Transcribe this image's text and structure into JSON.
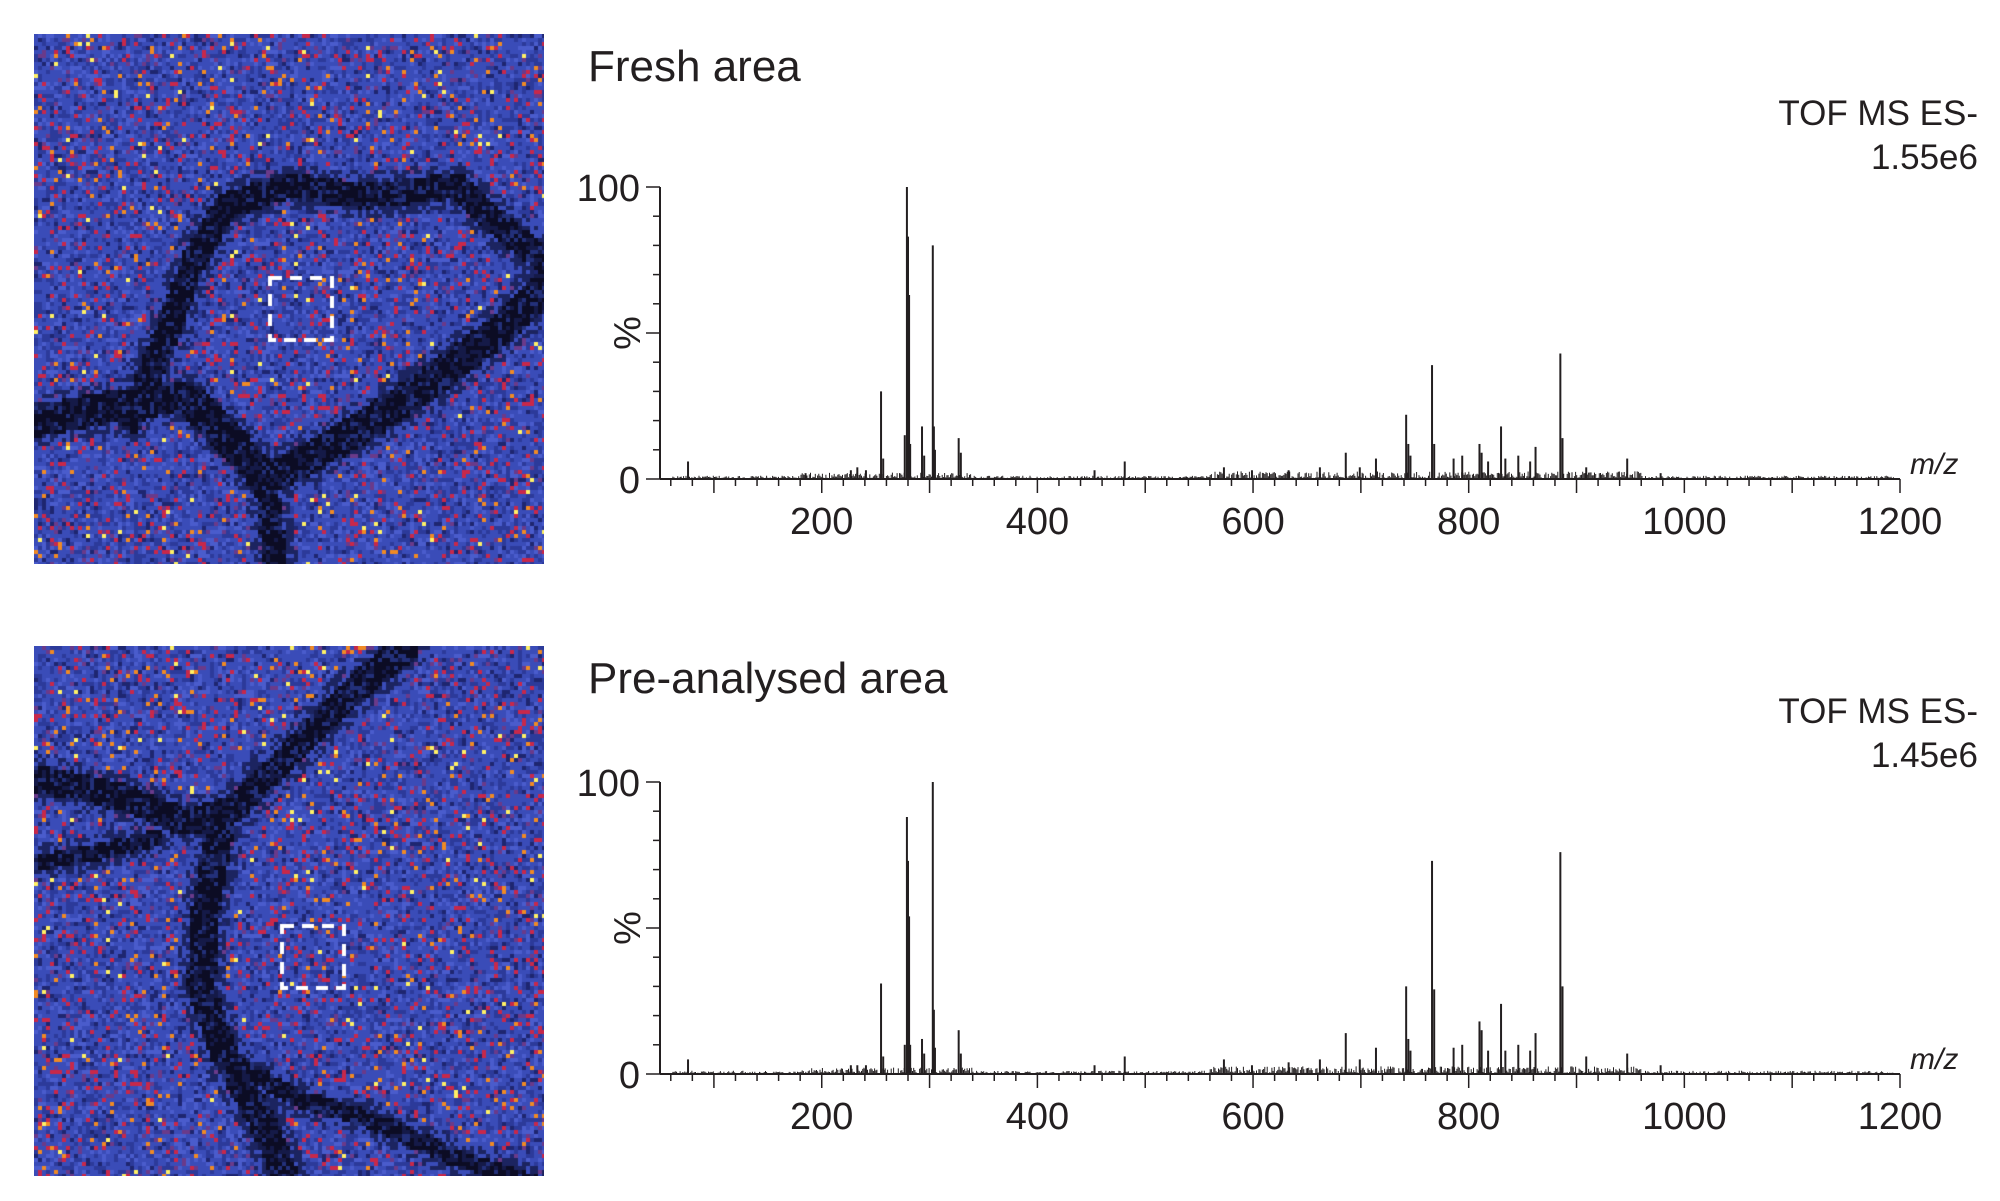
{
  "colors": {
    "background": "#ffffff",
    "spectrum_line": "#231f20",
    "tissue_base": "#3a4cb8",
    "tissue_dark": "#0c0c24",
    "hot_red": "#c8284a",
    "hot_orange": "#f08a24",
    "hot_yellow": "#fff066",
    "roi_box": "#ffffff"
  },
  "panels": [
    {
      "title": "Fresh area",
      "instrument": "TOF MS ES-",
      "intensity": "1.55e6",
      "image": {
        "description_icon": "tissue-ion-image",
        "roi": "dashed-square"
      }
    },
    {
      "title": "Pre-analysed area",
      "instrument": "TOF MS ES-",
      "intensity": "1.45e6",
      "image": {
        "description_icon": "tissue-ion-image",
        "roi": "dashed-square"
      }
    }
  ],
  "chart_data": [
    {
      "type": "bar",
      "title": "Fresh area",
      "xlabel": "m/z",
      "ylabel": "%",
      "xlim": [
        50,
        1200
      ],
      "ylim": [
        0,
        100
      ],
      "x_ticks": [
        200,
        400,
        600,
        800,
        1000,
        1200
      ],
      "y_ticks": [
        0,
        100
      ],
      "y_mid_label": "%",
      "peaks": [
        [
          76,
          6
        ],
        [
          185,
          2
        ],
        [
          227,
          3
        ],
        [
          233,
          4
        ],
        [
          241,
          3
        ],
        [
          255,
          30
        ],
        [
          257,
          7
        ],
        [
          277,
          15
        ],
        [
          279,
          100
        ],
        [
          280,
          83
        ],
        [
          281,
          63
        ],
        [
          282,
          12
        ],
        [
          293,
          18
        ],
        [
          295,
          8
        ],
        [
          303,
          80
        ],
        [
          304,
          18
        ],
        [
          305,
          10
        ],
        [
          327,
          14
        ],
        [
          329,
          9
        ],
        [
          453,
          3
        ],
        [
          481,
          6
        ],
        [
          573,
          4
        ],
        [
          599,
          3
        ],
        [
          633,
          3
        ],
        [
          662,
          4
        ],
        [
          686,
          9
        ],
        [
          699,
          4
        ],
        [
          714,
          7
        ],
        [
          742,
          22
        ],
        [
          744,
          12
        ],
        [
          746,
          8
        ],
        [
          766,
          39
        ],
        [
          768,
          12
        ],
        [
          786,
          7
        ],
        [
          794,
          8
        ],
        [
          810,
          12
        ],
        [
          812,
          9
        ],
        [
          818,
          6
        ],
        [
          830,
          18
        ],
        [
          834,
          7
        ],
        [
          846,
          8
        ],
        [
          857,
          6
        ],
        [
          862,
          11
        ],
        [
          885,
          43
        ],
        [
          887,
          14
        ],
        [
          909,
          4
        ],
        [
          947,
          7
        ],
        [
          978,
          2
        ]
      ]
    },
    {
      "type": "bar",
      "title": "Pre-analysed area",
      "xlabel": "m/z",
      "ylabel": "%",
      "xlim": [
        50,
        1200
      ],
      "ylim": [
        0,
        100
      ],
      "x_ticks": [
        200,
        400,
        600,
        800,
        1000,
        1200
      ],
      "y_ticks": [
        0,
        100
      ],
      "y_mid_label": "%",
      "peaks": [
        [
          76,
          5
        ],
        [
          227,
          3
        ],
        [
          233,
          3
        ],
        [
          241,
          3
        ],
        [
          255,
          31
        ],
        [
          257,
          6
        ],
        [
          277,
          10
        ],
        [
          279,
          88
        ],
        [
          280,
          73
        ],
        [
          281,
          54
        ],
        [
          282,
          10
        ],
        [
          293,
          12
        ],
        [
          295,
          7
        ],
        [
          303,
          100
        ],
        [
          304,
          22
        ],
        [
          305,
          9
        ],
        [
          327,
          15
        ],
        [
          329,
          7
        ],
        [
          453,
          3
        ],
        [
          481,
          6
        ],
        [
          573,
          5
        ],
        [
          599,
          3
        ],
        [
          633,
          4
        ],
        [
          662,
          5
        ],
        [
          686,
          14
        ],
        [
          699,
          5
        ],
        [
          714,
          9
        ],
        [
          742,
          30
        ],
        [
          744,
          12
        ],
        [
          746,
          8
        ],
        [
          766,
          73
        ],
        [
          768,
          29
        ],
        [
          786,
          9
        ],
        [
          794,
          10
        ],
        [
          810,
          18
        ],
        [
          812,
          15
        ],
        [
          818,
          8
        ],
        [
          830,
          24
        ],
        [
          834,
          8
        ],
        [
          846,
          10
        ],
        [
          857,
          8
        ],
        [
          862,
          14
        ],
        [
          885,
          76
        ],
        [
          887,
          30
        ],
        [
          909,
          6
        ],
        [
          947,
          7
        ],
        [
          978,
          3
        ]
      ]
    }
  ]
}
